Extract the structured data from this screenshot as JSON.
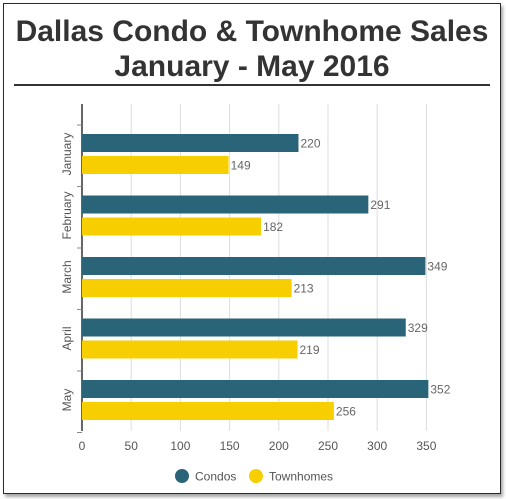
{
  "header": {
    "title_line1": "Dallas Condo & Townhome Sales",
    "title_line2": "January - May 2016"
  },
  "chart_data": {
    "type": "bar",
    "orientation": "horizontal",
    "title": "Dallas Condo & Townhome Sales January - May 2016",
    "categories": [
      "January",
      "February",
      "March",
      "April",
      "May"
    ],
    "series": [
      {
        "name": "Condos",
        "values": [
          220,
          291,
          349,
          329,
          352
        ],
        "color": "#2a6478"
      },
      {
        "name": "Townhomes",
        "values": [
          149,
          182,
          213,
          219,
          256
        ],
        "color": "#f7cf00"
      }
    ],
    "xlim": [
      0,
      350
    ],
    "x_ticks": [
      0,
      50,
      100,
      150,
      200,
      250,
      300,
      350
    ],
    "grid": true,
    "legend_position": "bottom",
    "data_labels": true
  }
}
